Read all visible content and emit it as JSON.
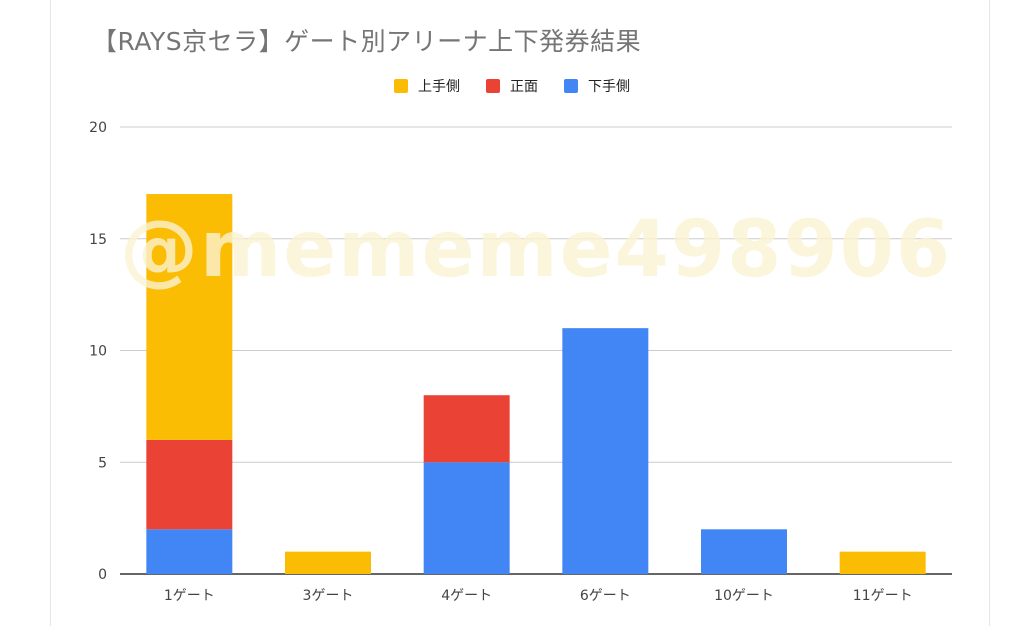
{
  "chart_data": {
    "type": "bar",
    "stacked": true,
    "title": "【RAYS京セラ】ゲート別アリーナ上下発券結果",
    "categories": [
      "1ゲート",
      "3ゲート",
      "4ゲート",
      "6ゲート",
      "10ゲート",
      "11ゲート"
    ],
    "series": [
      {
        "name": "下手側",
        "color": "#4285f4",
        "values": [
          2,
          0,
          5,
          11,
          2,
          0
        ]
      },
      {
        "name": "正面",
        "color": "#ea4335",
        "values": [
          4,
          0,
          3,
          0,
          0,
          0
        ]
      },
      {
        "name": "上手側",
        "color": "#fbbc04",
        "values": [
          11,
          1,
          0,
          0,
          0,
          1
        ]
      }
    ],
    "legend_order": [
      "上手側",
      "正面",
      "下手側"
    ],
    "legend_position": "top",
    "ylim": [
      0,
      20
    ],
    "yticks": [
      0,
      5,
      10,
      15,
      20
    ],
    "grid": true
  },
  "watermark": "@mememe498906"
}
